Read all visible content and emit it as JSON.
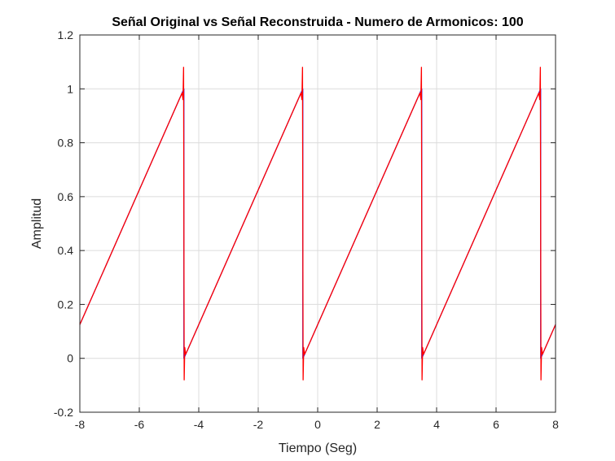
{
  "chart_data": {
    "type": "line",
    "title": "Señal Original vs Señal Reconstruida - Numero de Armonicos: 100",
    "xlabel": "Tiempo (Seg)",
    "ylabel": "Amplitud",
    "xlim": [
      -8,
      8
    ],
    "ylim": [
      -0.2,
      1.2
    ],
    "xticks": [
      -8,
      -6,
      -4,
      -2,
      0,
      2,
      4,
      6,
      8
    ],
    "xtick_labels": [
      "-8",
      "-6",
      "-4",
      "-2",
      "0",
      "2",
      "4",
      "6",
      "8"
    ],
    "yticks": [
      -0.2,
      0,
      0.2,
      0.4,
      0.6,
      0.8,
      1,
      1.2
    ],
    "ytick_labels": [
      "-0.2",
      "0",
      "0.2",
      "0.4",
      "0.6",
      "0.8",
      "1",
      "1.2"
    ],
    "grid": true,
    "legend": "none",
    "series": [
      {
        "color": "#0000ff",
        "x": [
          -8,
          -4.5,
          -4.5,
          -0.5,
          -0.5,
          3.5,
          3.5,
          7.5,
          7.5,
          8
        ],
        "y": [
          0.125,
          1,
          0,
          1,
          0,
          1,
          0,
          1,
          0,
          0.125
        ]
      },
      {
        "color": "#ff0000",
        "x": [
          -8,
          -4.56,
          -4.53,
          -4.51,
          -4.5,
          -4.49,
          -4.47,
          -4.44,
          -0.56,
          -0.53,
          -0.51,
          -0.5,
          -0.49,
          -0.47,
          -0.44,
          3.44,
          3.47,
          3.49,
          3.5,
          3.51,
          3.53,
          3.56,
          7.44,
          7.47,
          7.49,
          7.5,
          7.51,
          7.53,
          7.56,
          8
        ],
        "y": [
          0.125,
          0.985,
          0.96,
          1.08,
          0.5,
          -0.08,
          0.04,
          0.015,
          0.985,
          0.96,
          1.08,
          0.5,
          -0.08,
          0.04,
          0.015,
          0.985,
          0.96,
          1.08,
          0.5,
          -0.08,
          0.04,
          0.015,
          0.985,
          0.96,
          1.08,
          0.5,
          -0.08,
          0.04,
          0.015,
          0.125
        ]
      }
    ]
  }
}
